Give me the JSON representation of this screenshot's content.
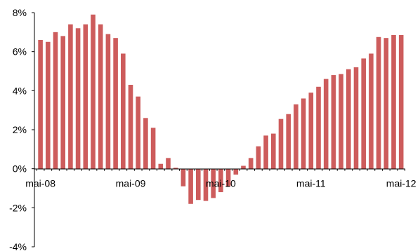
{
  "chart_data": {
    "type": "bar",
    "title": "",
    "xlabel": "",
    "ylabel": "",
    "ylim": [
      -4,
      8
    ],
    "y_ticks": [
      8,
      6,
      4,
      2,
      0,
      -2,
      -4
    ],
    "y_tick_labels": [
      "8%",
      "6%",
      "4%",
      "2%",
      "0%",
      "-2%",
      "-4%"
    ],
    "x_tick_labels": [
      "mai-08",
      "mai-09",
      "mai-10",
      "mai-11",
      "mai-12"
    ],
    "x_tick_label_bar_index": [
      0,
      12,
      24,
      36,
      48
    ],
    "bar_color": "#cd5c5c",
    "grid": false,
    "legend": "none",
    "categories": [
      "mai-08",
      "jun-08",
      "jul-08",
      "aug-08",
      "sep-08",
      "okt-08",
      "nov-08",
      "des-08",
      "jan-09",
      "feb-09",
      "mar-09",
      "apr-09",
      "mai-09",
      "jun-09",
      "jul-09",
      "aug-09",
      "sep-09",
      "okt-09",
      "nov-09",
      "des-09",
      "jan-10",
      "feb-10",
      "mar-10",
      "apr-10",
      "mai-10",
      "jun-10",
      "jul-10",
      "aug-10",
      "sep-10",
      "okt-10",
      "nov-10",
      "des-10",
      "jan-11",
      "feb-11",
      "mar-11",
      "apr-11",
      "mai-11",
      "jun-11",
      "jul-11",
      "aug-11",
      "sep-11",
      "okt-11",
      "nov-11",
      "des-11",
      "jan-12",
      "feb-12",
      "mar-12",
      "apr-12",
      "mai-12"
    ],
    "values": [
      6.6,
      6.5,
      7.0,
      6.8,
      7.4,
      7.2,
      7.4,
      7.9,
      7.4,
      6.9,
      6.7,
      5.9,
      4.3,
      3.7,
      2.6,
      2.1,
      0.25,
      0.55,
      0.05,
      -0.9,
      -1.8,
      -1.6,
      -1.65,
      -1.5,
      -1.2,
      -0.9,
      -0.3,
      0.15,
      0.55,
      1.15,
      1.7,
      1.8,
      2.55,
      2.8,
      3.3,
      3.6,
      3.9,
      4.2,
      4.6,
      4.8,
      4.85,
      5.1,
      5.2,
      5.65,
      5.9,
      6.75,
      6.7,
      6.85,
      6.85
    ]
  }
}
